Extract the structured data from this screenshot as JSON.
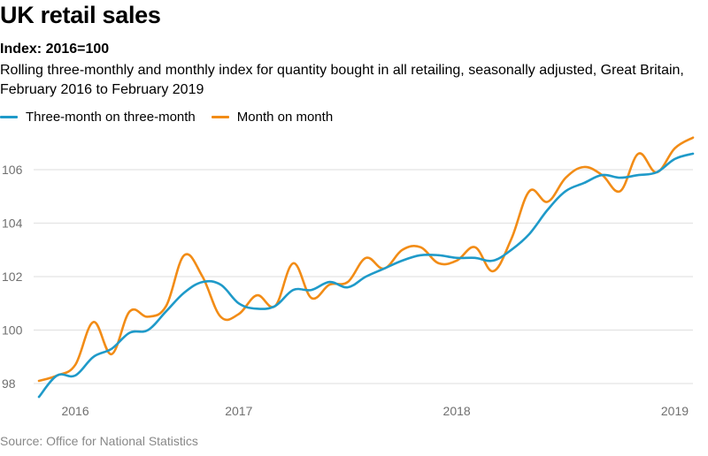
{
  "title": "UK retail sales",
  "subtitle_bold": "Index: 2016=100",
  "subtitle": "Rolling three-monthly and monthly index for quantity bought in all retailing, seasonally adjusted, Great Britain, February 2016 to February 2019",
  "source": "Source: Office for National Statistics",
  "legend": [
    {
      "label": "Three-month on three-month",
      "color": "#1f9ac9"
    },
    {
      "label": "Month on month",
      "color": "#f28c16"
    }
  ],
  "chart_data": {
    "type": "line",
    "title": "UK retail sales",
    "subtitle": "Index: 2016=100",
    "xlabel": "",
    "ylabel": "",
    "ylim": [
      97.3,
      107.4
    ],
    "yticks": [
      98,
      100,
      102,
      104,
      106
    ],
    "grid": true,
    "legend_position": "top-left",
    "x": [
      "Feb 2016",
      "Mar 2016",
      "Apr 2016",
      "May 2016",
      "Jun 2016",
      "Jul 2016",
      "Aug 2016",
      "Sep 2016",
      "Oct 2016",
      "Nov 2016",
      "Dec 2016",
      "Jan 2017",
      "Feb 2017",
      "Mar 2017",
      "Apr 2017",
      "May 2017",
      "Jun 2017",
      "Jul 2017",
      "Aug 2017",
      "Sep 2017",
      "Oct 2017",
      "Nov 2017",
      "Dec 2017",
      "Jan 2018",
      "Feb 2018",
      "Mar 2018",
      "Apr 2018",
      "May 2018",
      "Jun 2018",
      "Jul 2018",
      "Aug 2018",
      "Sep 2018",
      "Oct 2018",
      "Nov 2018",
      "Dec 2018",
      "Jan 2019",
      "Feb 2019"
    ],
    "xticks": [
      {
        "label": "2016",
        "index": 2
      },
      {
        "label": "2017",
        "index": 11
      },
      {
        "label": "2018",
        "index": 23
      },
      {
        "label": "2019",
        "index": 35
      }
    ],
    "series": [
      {
        "name": "Three-month on three-month",
        "color": "#1f9ac9",
        "values": [
          97.5,
          98.3,
          98.3,
          99.0,
          99.3,
          99.9,
          100.0,
          100.7,
          101.4,
          101.8,
          101.7,
          101.0,
          100.8,
          100.9,
          101.5,
          101.5,
          101.8,
          101.6,
          102.0,
          102.3,
          102.6,
          102.8,
          102.8,
          102.7,
          102.7,
          102.6,
          103.0,
          103.6,
          104.5,
          105.2,
          105.5,
          105.8,
          105.7,
          105.8,
          105.9,
          106.4,
          106.6
        ]
      },
      {
        "name": "Month on month",
        "color": "#f28c16",
        "values": [
          98.1,
          98.3,
          98.7,
          100.3,
          99.1,
          100.7,
          100.5,
          100.9,
          102.8,
          102.0,
          100.5,
          100.6,
          101.3,
          100.9,
          102.5,
          101.2,
          101.7,
          101.8,
          102.7,
          102.3,
          103.0,
          103.1,
          102.5,
          102.6,
          103.1,
          102.2,
          103.4,
          105.2,
          104.8,
          105.7,
          106.1,
          105.8,
          105.2,
          106.6,
          105.9,
          106.8,
          107.2
        ]
      }
    ]
  }
}
